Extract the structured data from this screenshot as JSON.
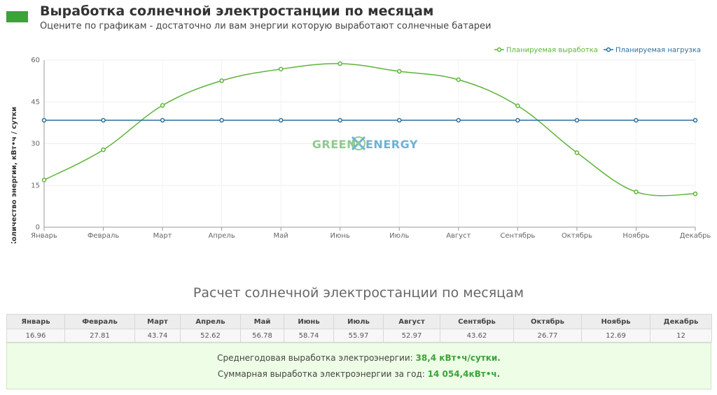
{
  "header": {
    "title": "Выработка солнечной электростанции по месяцам",
    "subtitle": "Оцените по графикам - достаточно ли вам энергии которую выработают солнечные батареи"
  },
  "watermark": {
    "left": "GREEN",
    "right": "ENERGY"
  },
  "colors": {
    "generation": "#5db33a",
    "load": "#2b6f9b",
    "badge": "#3aa33a"
  },
  "chart_data": {
    "type": "line",
    "categories": [
      "Январь",
      "Февраль",
      "Март",
      "Апрель",
      "Май",
      "Июнь",
      "Июль",
      "Август",
      "Сентябрь",
      "Октябрь",
      "Ноябрь",
      "Декабрь"
    ],
    "series": [
      {
        "name": "Планируемая выработка",
        "values": [
          16.96,
          27.81,
          43.74,
          52.62,
          56.78,
          58.74,
          55.97,
          52.97,
          43.62,
          26.77,
          12.69,
          12
        ]
      },
      {
        "name": "Планируемая нагрузка",
        "values": [
          38.4,
          38.4,
          38.4,
          38.4,
          38.4,
          38.4,
          38.4,
          38.4,
          38.4,
          38.4,
          38.4,
          38.4
        ]
      }
    ],
    "yticks": [
      "0",
      "15",
      "30",
      "45",
      "60"
    ],
    "ylim": [
      0,
      60
    ],
    "ylabel": "Количество энергии, кВт•ч / сутки",
    "grid": true,
    "legend_position": "top-right"
  },
  "calc": {
    "title": "Расчет солнечной электростанции по месяцам",
    "months": [
      "Январь",
      "Февраль",
      "Март",
      "Апрель",
      "Май",
      "Июнь",
      "Июль",
      "Август",
      "Сентябрь",
      "Октябрь",
      "Ноябрь",
      "Декабрь"
    ],
    "values": [
      "16.96",
      "27.81",
      "43.74",
      "52.62",
      "56.78",
      "58.74",
      "55.97",
      "52.97",
      "43.62",
      "26.77",
      "12.69",
      "12"
    ]
  },
  "summary": {
    "avg_label": "Среднегодовая выработка электроэнергии:",
    "avg_value": "38,4 кВт•ч/сутки.",
    "total_label": "Суммарная выработка электроэнергии за год:",
    "total_value": "14 054,4кВт•ч."
  }
}
